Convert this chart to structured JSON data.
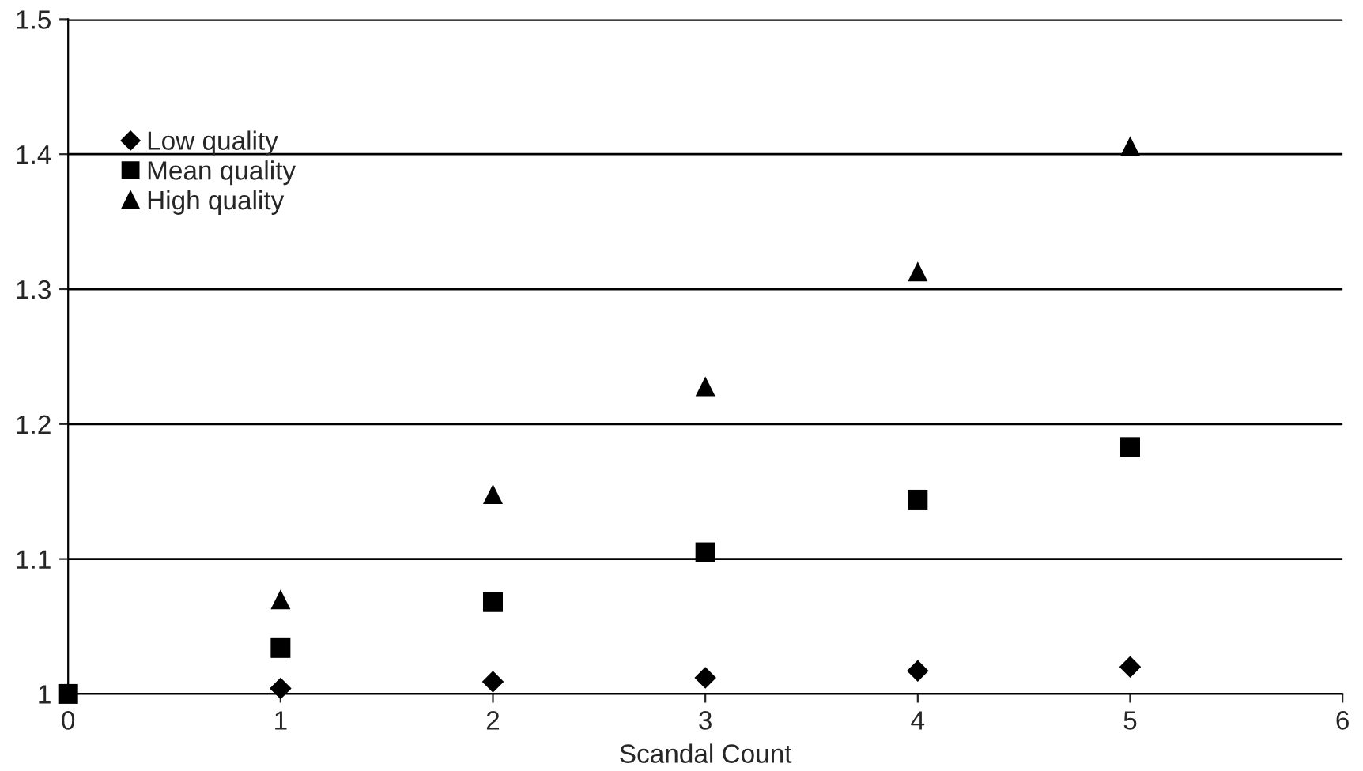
{
  "chart_data": {
    "type": "scatter",
    "xlabel": "Scandal Count",
    "x": [
      0,
      1,
      2,
      3,
      4,
      5
    ],
    "series": [
      {
        "name": "Low quality",
        "color": "#000000",
        "marker": "diamond",
        "values": [
          null,
          1.004,
          1.009,
          1.012,
          1.017,
          1.02
        ]
      },
      {
        "name": "Mean quality",
        "color": "#000000",
        "marker": "square",
        "values": [
          1.0,
          1.034,
          1.068,
          1.105,
          1.144,
          1.183
        ]
      },
      {
        "name": "High quality",
        "color": "#000000",
        "marker": "triangle",
        "values": [
          null,
          1.07,
          1.148,
          1.228,
          1.313,
          1.406
        ]
      }
    ],
    "xlim": [
      0,
      6
    ],
    "xticks": [
      0,
      1,
      2,
      3,
      4,
      5,
      6
    ],
    "ylim": [
      1,
      1.5
    ],
    "yticks": [
      1,
      1.1,
      1.2,
      1.3,
      1.4,
      1.5
    ],
    "grid": "y",
    "legend": "top left"
  }
}
